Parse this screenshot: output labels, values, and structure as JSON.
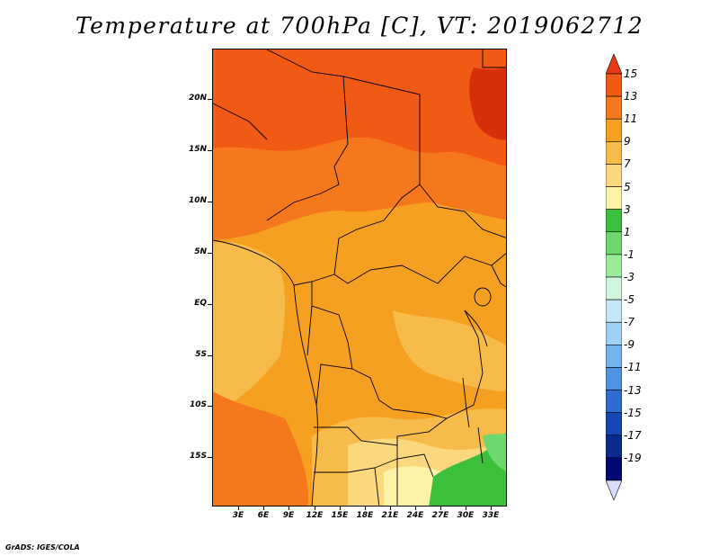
{
  "title": "Temperature at 700hPa [C], VT: 2019062712",
  "credit": "GrADS: IGES/COLA",
  "map": {
    "lat_labels": [
      "20N",
      "15N",
      "10N",
      "5N",
      "EQ",
      "5S",
      "10S",
      "15S"
    ],
    "lon_labels": [
      "3E",
      "6E",
      "9E",
      "12E",
      "15E",
      "18E",
      "21E",
      "24E",
      "27E",
      "30E",
      "33E"
    ]
  },
  "colorbar": {
    "labels": [
      "15",
      "13",
      "11",
      "9",
      "7",
      "5",
      "3",
      "1",
      "-1",
      "-3",
      "-5",
      "-7",
      "-9",
      "-11",
      "-13",
      "-15",
      "-17",
      "-19"
    ],
    "colors": [
      "#e83a14",
      "#f05a14",
      "#f5781c",
      "#f5a021",
      "#f7bb4a",
      "#fbd77d",
      "#fdf3a6",
      "#3cc03c",
      "#6ed86e",
      "#9aec9a",
      "#cff6dc",
      "#c4e6f8",
      "#a0d0f4",
      "#74b4ee",
      "#4e92e2",
      "#2e6cd0",
      "#1646b4",
      "#0a2a90",
      "#000a70",
      "#d8dcf8"
    ]
  }
}
